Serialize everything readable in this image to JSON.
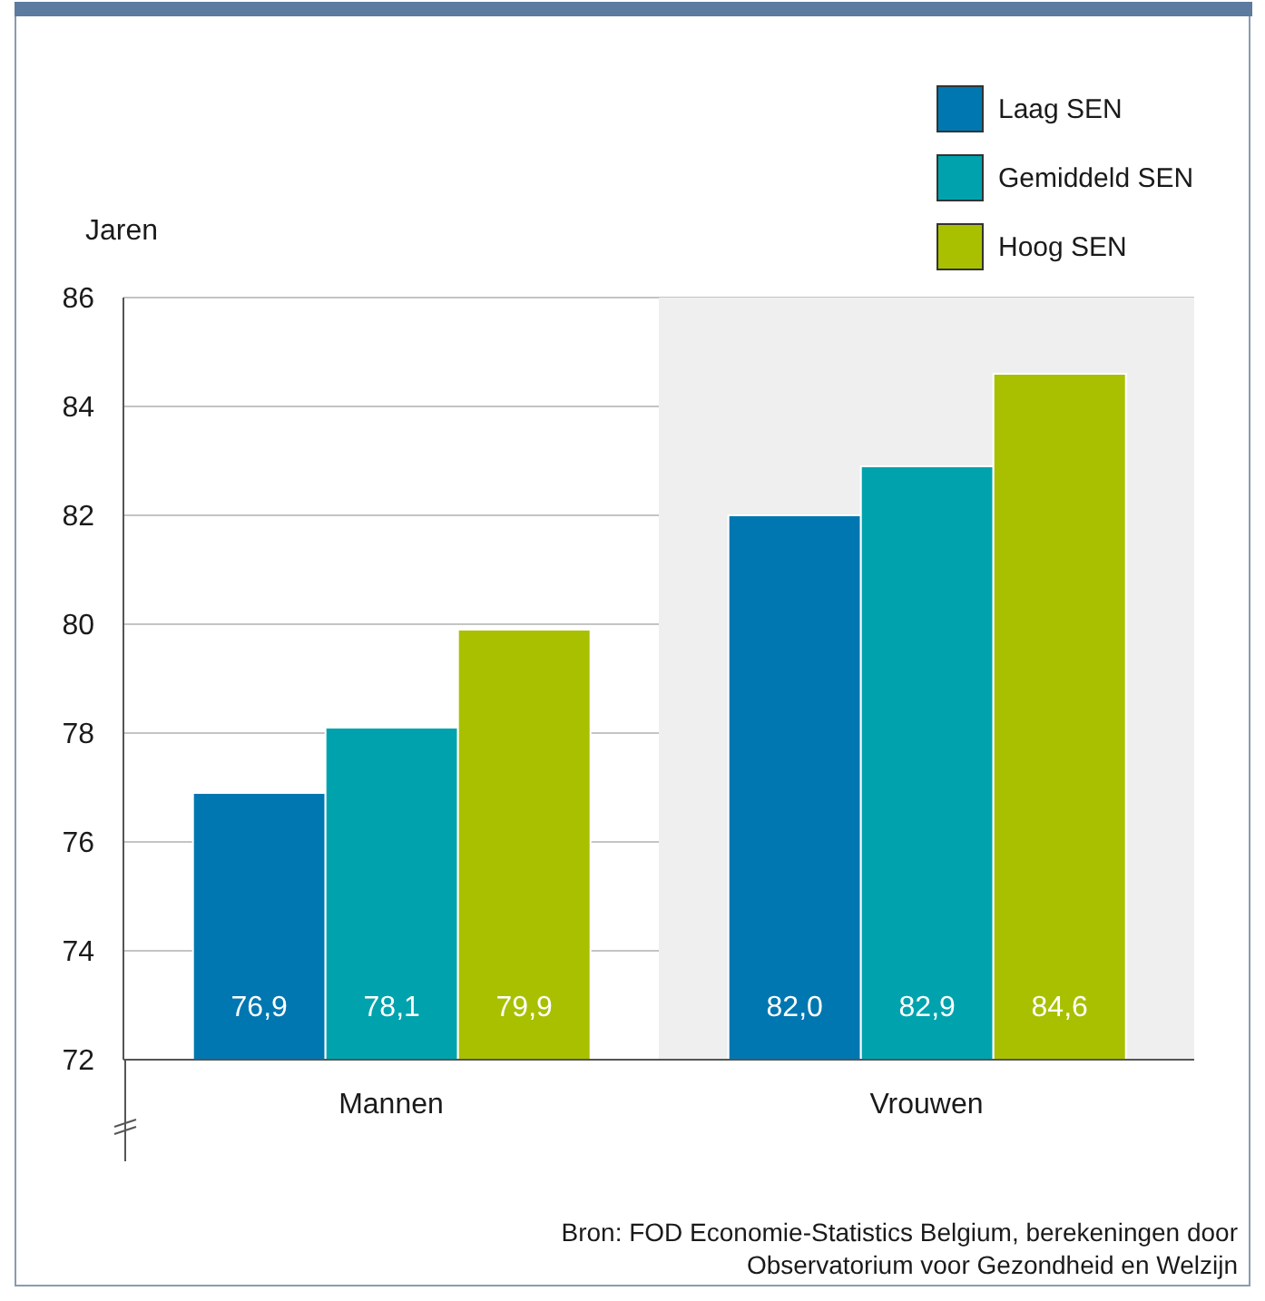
{
  "chart_data": {
    "type": "bar",
    "ylabel": "Jaren",
    "categories": [
      "Mannen",
      "Vrouwen"
    ],
    "series": [
      {
        "name": "Laag SEN",
        "color": "#0077b0",
        "values": [
          76.9,
          82.0
        ],
        "value_labels": [
          "76,9",
          "82,0"
        ]
      },
      {
        "name": "Gemiddeld SEN",
        "color": "#00a3ad",
        "values": [
          78.1,
          82.9
        ],
        "value_labels": [
          "78,1",
          "82,9"
        ]
      },
      {
        "name": "Hoog SEN",
        "color": "#a9c000",
        "values": [
          79.9,
          84.6
        ],
        "value_labels": [
          "79,9",
          "84,6"
        ]
      }
    ],
    "ylim": [
      72,
      86
    ],
    "yticks": [
      72,
      74,
      76,
      78,
      80,
      82,
      84,
      86
    ],
    "grid": "y",
    "legend": "top right",
    "bands": [
      {
        "axis": "x",
        "from": "Vrouwen",
        "to": "Vrouwen",
        "color": "#efefef"
      }
    ],
    "annotations": [
      "Bron: FOD Economie-Statistics Belgium, berekeningen door Observatorium voor Gezondheid en Welzijn"
    ]
  }
}
